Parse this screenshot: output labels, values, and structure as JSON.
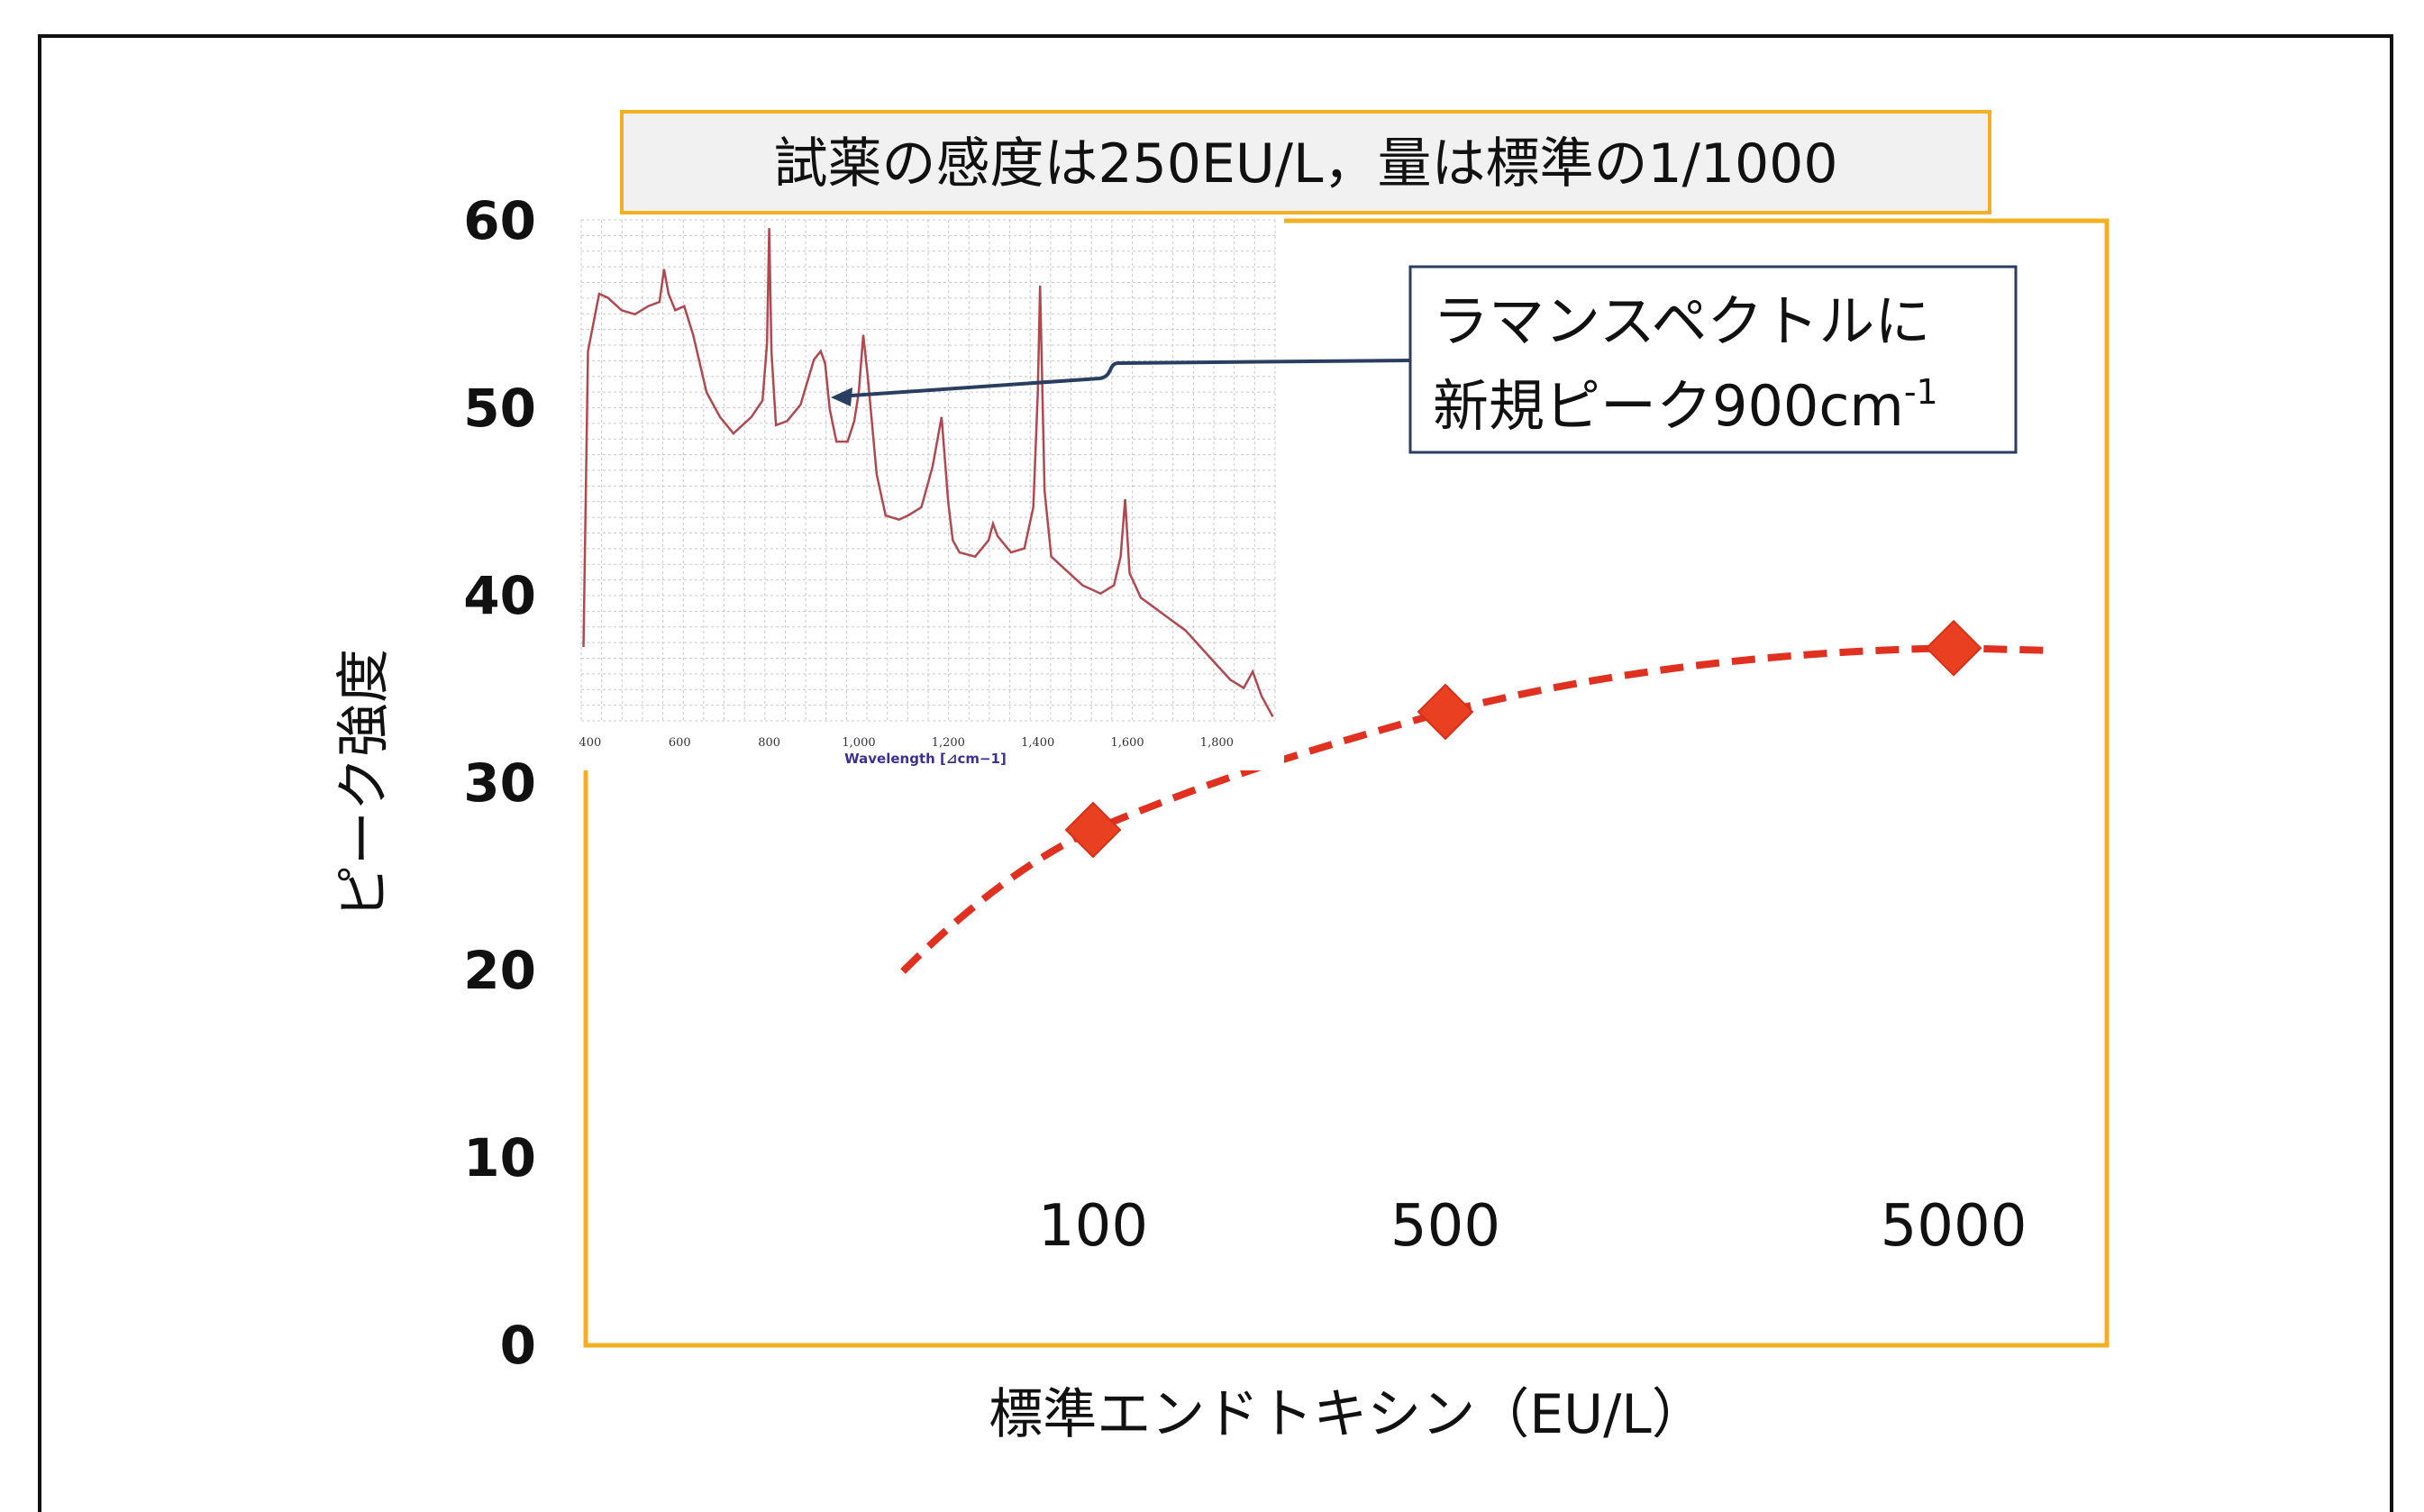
{
  "chart_data": [
    {
      "type": "line",
      "title": "試薬の感度は250EU/L，量は標準の1/1000",
      "xlabel": "標準エンドトキシン（EU/L）",
      "ylabel": "ピーク強度",
      "ylim": [
        0,
        60
      ],
      "yticks": [
        "0",
        "10",
        "20",
        "30",
        "40",
        "50",
        "60"
      ],
      "categories": [
        "100",
        "500",
        "5000"
      ],
      "series": [
        {
          "values": [
            27.5,
            33.8,
            37.2
          ],
          "color": "#e84020",
          "marker": "diamond",
          "line": "dashed-fit"
        }
      ],
      "grid": false,
      "frame_color": "#f0b020"
    },
    {
      "type": "line",
      "xlabel": "Wavelength [⊿cm−1]",
      "xticks": [
        "400",
        "600",
        "800",
        "1,000",
        "1,200",
        "1,400",
        "1,600",
        "1,800"
      ],
      "xlim": [
        380,
        1930
      ],
      "grid": true,
      "series": [
        {
          "color": "#b04850",
          "x": [
            385,
            395,
            420,
            440,
            470,
            500,
            530,
            555,
            565,
            575,
            590,
            610,
            630,
            660,
            690,
            720,
            760,
            785,
            795,
            800,
            805,
            815,
            840,
            870,
            900,
            915,
            925,
            935,
            950,
            975,
            990,
            1000,
            1010,
            1020,
            1040,
            1060,
            1090,
            1110,
            1140,
            1165,
            1185,
            1200,
            1210,
            1225,
            1260,
            1290,
            1300,
            1310,
            1340,
            1370,
            1390,
            1400,
            1405,
            1415,
            1430,
            1460,
            1500,
            1540,
            1570,
            1585,
            1595,
            1605,
            1630,
            1680,
            1730,
            1780,
            1830,
            1860,
            1880,
            1900,
            1925
          ],
          "values": [
            9,
            45,
            52,
            51.5,
            50,
            49.5,
            50.5,
            51,
            55,
            52,
            50,
            50.5,
            47,
            40,
            37,
            35,
            37,
            39,
            46,
            60,
            45,
            36,
            36.5,
            38.5,
            44,
            45,
            43.5,
            38,
            34,
            34,
            36.5,
            40,
            47,
            42,
            30,
            25,
            24.5,
            25,
            26,
            31,
            37,
            26.5,
            22,
            20.5,
            20,
            22,
            24,
            22.5,
            20.5,
            21,
            26,
            40,
            53,
            28,
            20,
            18.5,
            16.5,
            15.5,
            16.5,
            20,
            27,
            18,
            15,
            13,
            11,
            8,
            5,
            4,
            6,
            3,
            0.5
          ]
        }
      ]
    }
  ],
  "annotation": {
    "line1": "ラマンスペクトルに",
    "line2": "新規ピーク900cm",
    "sup": "-1"
  }
}
